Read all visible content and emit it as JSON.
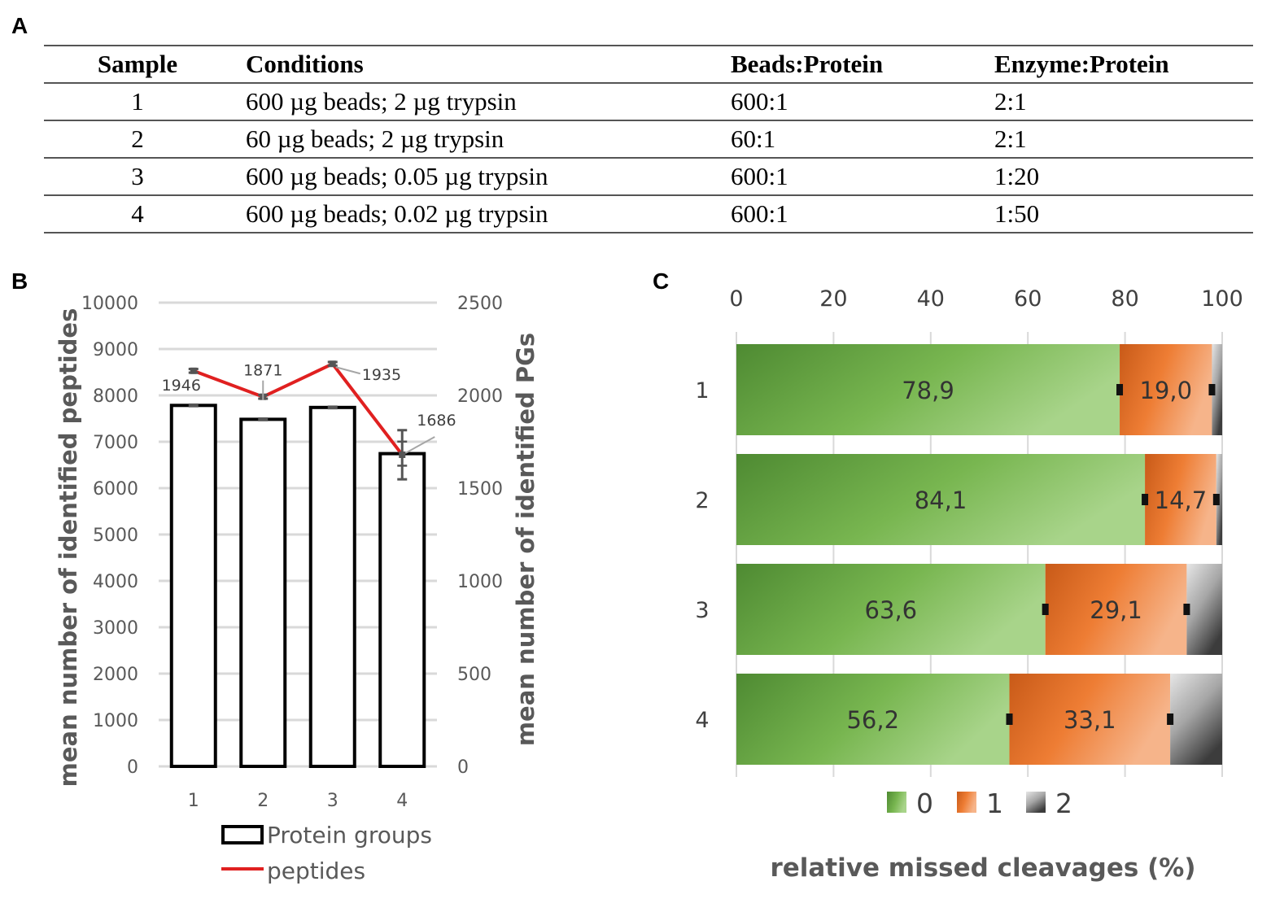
{
  "panel_labels": {
    "a": "A",
    "b": "B",
    "c": "C"
  },
  "table": {
    "headers": [
      "Sample",
      "Conditions",
      "Beads:Protein",
      "Enzyme:Protein"
    ],
    "rows": [
      [
        "1",
        "600 µg beads; 2 µg trypsin",
        "600:1",
        "2:1"
      ],
      [
        "2",
        "60 µg beads; 2 µg trypsin",
        "60:1",
        "2:1"
      ],
      [
        "3",
        "600 µg beads; 0.05 µg trypsin",
        "600:1",
        "1:20"
      ],
      [
        "4",
        "600 µg beads; 0.02 µg trypsin",
        "600:1",
        "1:50"
      ]
    ]
  },
  "chart_data": [
    {
      "type": "bar",
      "panel": "B",
      "categories": [
        "1",
        "2",
        "3",
        "4"
      ],
      "series": [
        {
          "name": "Protein groups",
          "axis": "right",
          "values": [
            1946,
            1871,
            1935,
            1686
          ],
          "errors": [
            5,
            5,
            5,
            65
          ]
        },
        {
          "name": "peptides",
          "axis": "left",
          "type": "line",
          "values": [
            8530,
            7970,
            8680,
            6720
          ],
          "errors": [
            40,
            40,
            40,
            530
          ]
        }
      ],
      "data_labels": [
        "1946",
        "1871",
        "1935",
        "1686"
      ],
      "ylabel": "mean number of identified peptides",
      "y2label": "mean number of identified PGs",
      "ylim": [
        0,
        10000
      ],
      "y2lim": [
        0,
        2500
      ],
      "yticks": [
        "0",
        "1000",
        "2000",
        "3000",
        "4000",
        "5000",
        "6000",
        "7000",
        "8000",
        "9000",
        "10000"
      ],
      "y2ticks": [
        "0",
        "500",
        "1000",
        "1500",
        "2000",
        "2500"
      ],
      "legend": [
        "Protein groups",
        "peptides"
      ],
      "colors": {
        "bar_edge": "#000000",
        "line": "#e02020",
        "error": "#555555",
        "grid": "#d9d9d9"
      }
    },
    {
      "type": "bar",
      "panel": "C",
      "orientation": "horizontal",
      "stacked": true,
      "categories": [
        "1",
        "2",
        "3",
        "4"
      ],
      "series": [
        {
          "name": "0",
          "values": [
            78.9,
            84.1,
            63.6,
            56.2
          ],
          "labels": [
            "78,9",
            "84,1",
            "63,6",
            "56,2"
          ],
          "color": "#6aaa45"
        },
        {
          "name": "1",
          "values": [
            19.0,
            14.7,
            29.1,
            33.1
          ],
          "labels": [
            "19,0",
            "14,7",
            "29,1",
            "33,1"
          ],
          "color": "#e8722a"
        },
        {
          "name": "2",
          "values": [
            2.1,
            1.2,
            7.3,
            10.7
          ],
          "labels": [],
          "color": "#888888"
        }
      ],
      "xlim": [
        0,
        100
      ],
      "xticks": [
        "0",
        "20",
        "40",
        "60",
        "80",
        "100"
      ],
      "xlabel": "relative missed cleavages (%)",
      "legend": [
        "0",
        "1",
        "2"
      ]
    }
  ]
}
